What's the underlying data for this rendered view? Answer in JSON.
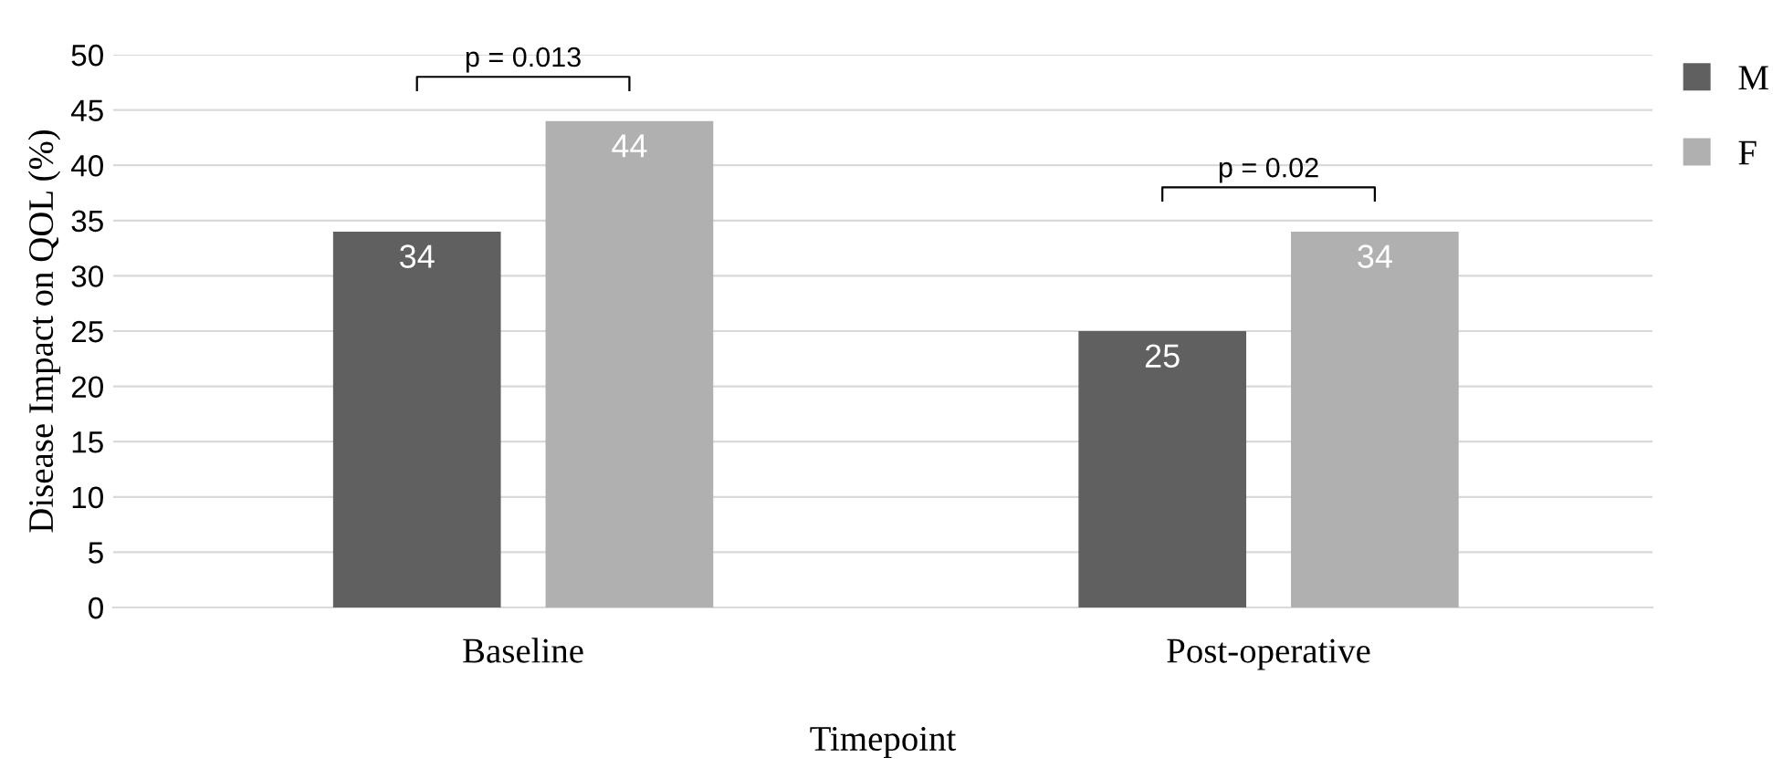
{
  "chart_data": {
    "type": "bar",
    "xlabel": "Timepoint",
    "ylabel": "Disease Impact on QOL (%)",
    "categories": [
      "Baseline",
      "Post-operative"
    ],
    "series": [
      {
        "name": "M",
        "color": "#606060",
        "values": [
          34,
          25
        ]
      },
      {
        "name": "F",
        "color": "#b0b0b0",
        "values": [
          44,
          34
        ]
      }
    ],
    "ylim": [
      0,
      50
    ],
    "yticks": [
      0,
      5,
      10,
      15,
      20,
      25,
      30,
      35,
      40,
      45,
      50
    ],
    "grid": "y",
    "legend": "top right",
    "data_labels": true,
    "annotations": [
      "p = 0.013",
      "p = 0.02"
    ]
  }
}
